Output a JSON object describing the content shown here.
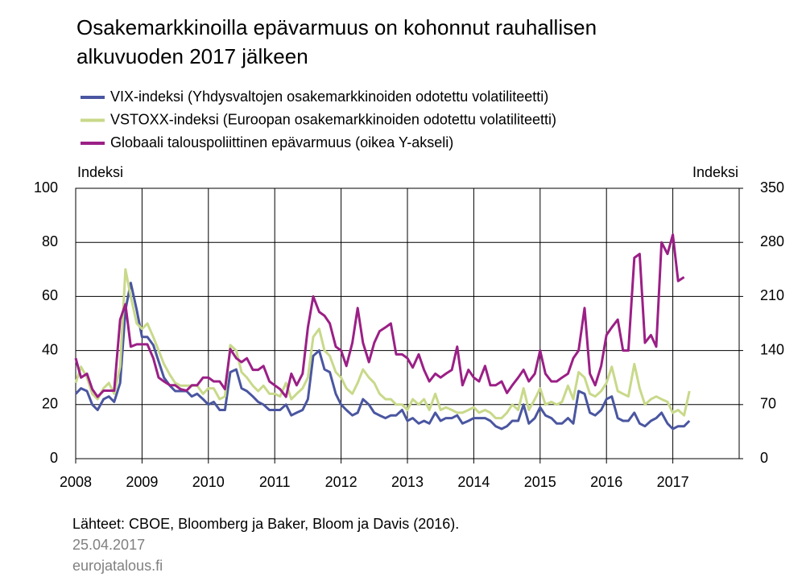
{
  "chart_data": {
    "type": "line",
    "title": [
      "Osakemarkkinoilla epävarmuus on kohonnut rauhallisen",
      "alkuvuoden 2017 jälkeen"
    ],
    "y_label": "Indeksi",
    "y2_label": "Indeksi",
    "source": "Lähteet: CBOE, Bloomberg ja Baker, Bloom ja Davis (2016).",
    "date": "25.04.2017",
    "publisher": "eurojatalous.fi",
    "xlim": [
      2008,
      2018
    ],
    "xticks": [
      2008,
      2009,
      2010,
      2011,
      2012,
      2013,
      2014,
      2015,
      2016,
      2017
    ],
    "ylim": [
      0,
      100
    ],
    "yticks": [
      0,
      20,
      40,
      60,
      80,
      100
    ],
    "y2lim": [
      0,
      350
    ],
    "y2ticks": [
      0,
      70,
      140,
      210,
      280,
      350
    ],
    "grid": true,
    "x": [
      2008.0,
      2008.08,
      2008.17,
      2008.25,
      2008.33,
      2008.42,
      2008.5,
      2008.58,
      2008.67,
      2008.75,
      2008.83,
      2008.92,
      2009.0,
      2009.08,
      2009.17,
      2009.25,
      2009.33,
      2009.42,
      2009.5,
      2009.58,
      2009.67,
      2009.75,
      2009.83,
      2009.92,
      2010.0,
      2010.08,
      2010.17,
      2010.25,
      2010.33,
      2010.42,
      2010.5,
      2010.58,
      2010.67,
      2010.75,
      2010.83,
      2010.92,
      2011.0,
      2011.08,
      2011.17,
      2011.25,
      2011.33,
      2011.42,
      2011.5,
      2011.58,
      2011.67,
      2011.75,
      2011.83,
      2011.92,
      2012.0,
      2012.08,
      2012.17,
      2012.25,
      2012.33,
      2012.42,
      2012.5,
      2012.58,
      2012.67,
      2012.75,
      2012.83,
      2012.92,
      2013.0,
      2013.08,
      2013.17,
      2013.25,
      2013.33,
      2013.42,
      2013.5,
      2013.58,
      2013.67,
      2013.75,
      2013.83,
      2013.92,
      2014.0,
      2014.08,
      2014.17,
      2014.25,
      2014.33,
      2014.42,
      2014.5,
      2014.58,
      2014.67,
      2014.75,
      2014.83,
      2014.92,
      2015.0,
      2015.08,
      2015.17,
      2015.25,
      2015.33,
      2015.42,
      2015.5,
      2015.58,
      2015.67,
      2015.75,
      2015.83,
      2015.92,
      2016.0,
      2016.08,
      2016.17,
      2016.25,
      2016.33,
      2016.42,
      2016.5,
      2016.58,
      2016.67,
      2016.75,
      2016.83,
      2016.92,
      2017.0,
      2017.08,
      2017.17,
      2017.25
    ],
    "series": [
      {
        "name": "VIX-indeksi (Yhdysvaltojen osakemarkkinoiden odotettu volatiliteetti)",
        "color": "#4a56a0",
        "values": [
          24,
          26,
          25,
          20,
          18,
          22,
          23,
          21,
          28,
          55,
          65,
          55,
          45,
          45,
          42,
          36,
          30,
          27,
          25,
          25,
          25,
          23,
          24,
          22,
          20,
          21,
          18,
          18,
          32,
          33,
          26,
          25,
          23,
          21,
          20,
          18,
          18,
          18,
          20,
          16,
          17,
          18,
          22,
          38,
          40,
          33,
          32,
          24,
          20,
          18,
          16,
          17,
          22,
          20,
          17,
          16,
          15,
          16,
          16,
          18,
          14,
          15,
          13,
          14,
          13,
          17,
          14,
          15,
          15,
          16,
          13,
          14,
          15,
          15,
          15,
          14,
          12,
          11,
          12,
          14,
          14,
          20,
          13,
          15,
          19,
          16,
          15,
          13,
          13,
          15,
          13,
          25,
          24,
          17,
          16,
          18,
          22,
          23,
          15,
          14,
          14,
          17,
          13,
          12,
          14,
          15,
          17,
          13,
          11,
          12,
          12,
          14
        ]
      },
      {
        "name": "VSTOXX-indeksi (Euroopan osakemarkkinoiden odotettu volatiliteetti)",
        "color": "#c8d98a",
        "values": [
          28,
          34,
          30,
          24,
          22,
          26,
          28,
          24,
          34,
          70,
          60,
          50,
          48,
          50,
          45,
          40,
          35,
          31,
          28,
          27,
          27,
          27,
          27,
          24,
          26,
          26,
          22,
          23,
          42,
          40,
          32,
          30,
          27,
          25,
          27,
          24,
          24,
          23,
          28,
          22,
          24,
          26,
          30,
          45,
          48,
          40,
          38,
          32,
          30,
          26,
          24,
          28,
          33,
          30,
          28,
          24,
          22,
          22,
          20,
          20,
          18,
          22,
          20,
          22,
          18,
          24,
          18,
          19,
          18,
          17,
          17,
          18,
          19,
          17,
          18,
          17,
          15,
          15,
          17,
          20,
          18,
          26,
          18,
          22,
          26,
          20,
          21,
          20,
          21,
          27,
          22,
          32,
          30,
          24,
          23,
          25,
          28,
          34,
          25,
          24,
          23,
          35,
          26,
          20,
          22,
          23,
          22,
          21,
          17,
          18,
          16,
          25
        ]
      },
      {
        "name": "Globaali talouspoliittinen epävarmuus (oikea Y-akseli)",
        "color": "#9b1f86",
        "axis": "y2",
        "values": [
          130,
          105,
          110,
          90,
          80,
          88,
          88,
          88,
          180,
          200,
          145,
          148,
          148,
          148,
          130,
          105,
          100,
          95,
          95,
          90,
          88,
          95,
          95,
          105,
          105,
          100,
          100,
          90,
          142,
          130,
          125,
          130,
          115,
          115,
          120,
          100,
          95,
          90,
          80,
          110,
          95,
          110,
          170,
          210,
          190,
          185,
          175,
          145,
          140,
          120,
          150,
          195,
          150,
          125,
          150,
          165,
          170,
          175,
          135,
          135,
          130,
          118,
          135,
          115,
          100,
          110,
          105,
          110,
          115,
          145,
          95,
          115,
          105,
          100,
          120,
          95,
          95,
          100,
          85,
          95,
          105,
          115,
          100,
          110,
          140,
          110,
          100,
          100,
          105,
          110,
          130,
          140,
          195,
          110,
          95,
          120,
          160,
          170,
          180,
          140,
          140,
          260,
          265,
          150,
          160,
          145,
          280,
          265,
          290,
          230,
          235,
          null
        ]
      }
    ]
  }
}
